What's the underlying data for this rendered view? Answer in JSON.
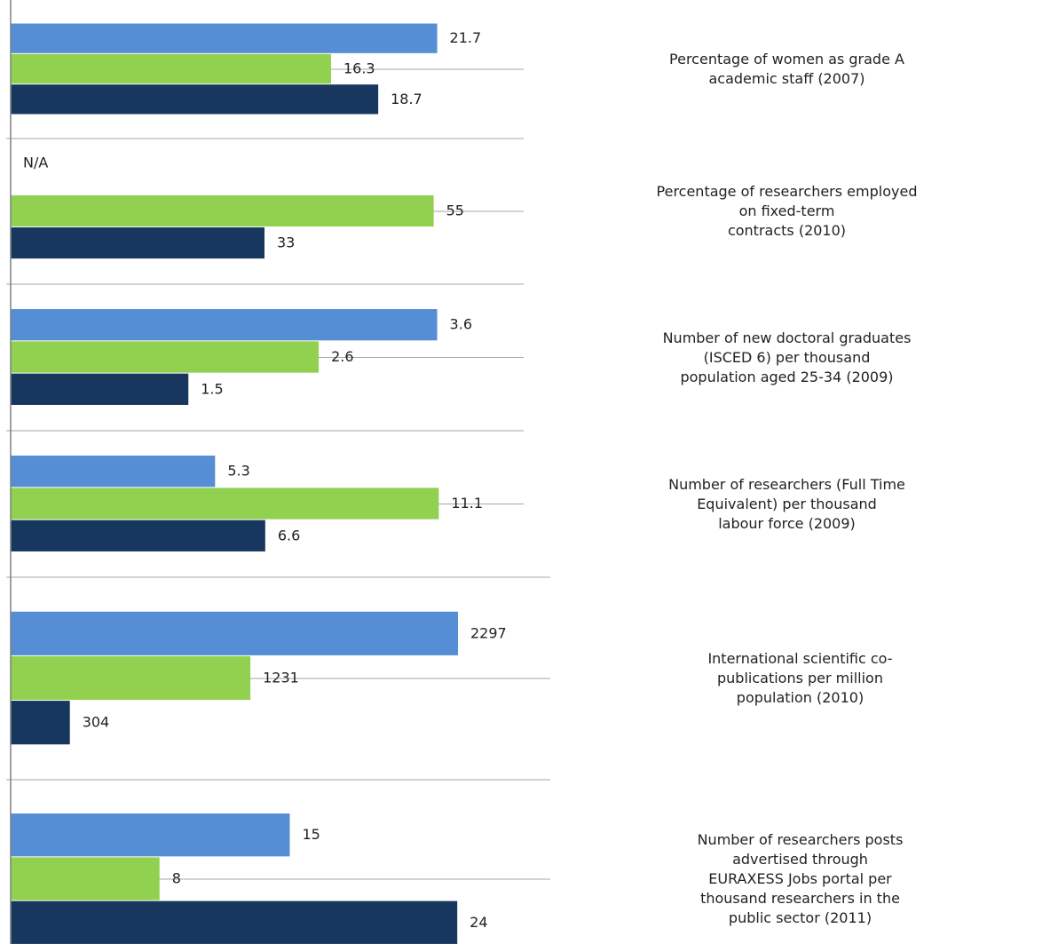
{
  "chart_data": [
    {
      "type": "bar",
      "orientation": "horizontal",
      "categories": [
        "Percentage of women as grade A academic staff (2007)"
      ],
      "xlim": [
        0,
        26.1
      ],
      "series": [
        {
          "color": "#558ed5",
          "values": [
            21.7
          ]
        },
        {
          "color": "#92d050",
          "values": [
            16.3
          ]
        },
        {
          "color": "#17375e",
          "values": [
            18.7
          ]
        }
      ]
    },
    {
      "type": "bar",
      "orientation": "horizontal",
      "categories": [
        "Percentage of researchers employed on fixed-term\ncontracts (2010)"
      ],
      "xlim": [
        0,
        66.7
      ],
      "series": [
        {
          "color": "#558ed5",
          "values": [
            null
          ],
          "value_labels": [
            "N/A"
          ]
        },
        {
          "color": "#92d050",
          "values": [
            55
          ]
        },
        {
          "color": "#17375e",
          "values": [
            33
          ]
        }
      ]
    },
    {
      "type": "bar",
      "orientation": "horizontal",
      "categories": [
        "Number of new doctoral graduates (ISCED 6) per thousand\npopulation aged 25-34 (2009)"
      ],
      "xlim": [
        0,
        4.33
      ],
      "series": [
        {
          "color": "#558ed5",
          "values": [
            3.6
          ]
        },
        {
          "color": "#92d050",
          "values": [
            2.6
          ]
        },
        {
          "color": "#17375e",
          "values": [
            1.5
          ]
        }
      ]
    },
    {
      "type": "bar",
      "orientation": "horizontal",
      "categories": [
        "Number of researchers (Full Time Equivalent) per thousand\nlabour force (2009)"
      ],
      "xlim": [
        0,
        13.3
      ],
      "series": [
        {
          "color": "#558ed5",
          "values": [
            5.3
          ]
        },
        {
          "color": "#92d050",
          "values": [
            11.1
          ]
        },
        {
          "color": "#17375e",
          "values": [
            6.6
          ]
        }
      ]
    },
    {
      "type": "bar",
      "orientation": "horizontal",
      "categories": [
        "International scientific co-publications per million\npopulation (2010)"
      ],
      "xlim": [
        0,
        2771
      ],
      "series": [
        {
          "color": "#558ed5",
          "values": [
            2297
          ]
        },
        {
          "color": "#92d050",
          "values": [
            1231
          ]
        },
        {
          "color": "#17375e",
          "values": [
            304
          ]
        }
      ]
    },
    {
      "type": "bar",
      "orientation": "horizontal",
      "categories": [
        "Number of researchers posts advertised through\nEURAXESS Jobs portal per thousand researchers in the\npublic sector (2011)"
      ],
      "xlim": [
        0,
        29
      ],
      "series": [
        {
          "color": "#558ed5",
          "values": [
            15
          ]
        },
        {
          "color": "#92d050",
          "values": [
            8
          ]
        },
        {
          "color": "#17375e",
          "values": [
            24
          ]
        }
      ]
    }
  ]
}
